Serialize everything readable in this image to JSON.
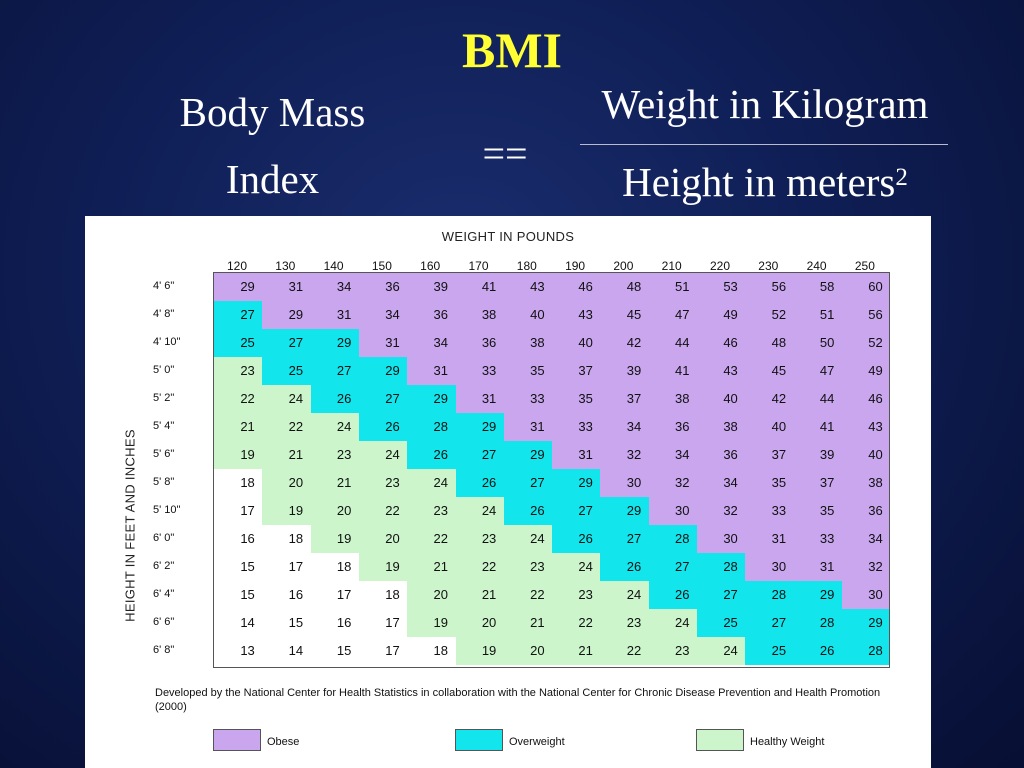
{
  "slide": {
    "title": "BMI",
    "lhs_line1": "Body Mass",
    "lhs_line2": "Index",
    "equals": "==",
    "numerator": "Weight in Kilogram",
    "denominator": "Height in meters",
    "denominator_exponent": "2"
  },
  "colors": {
    "obese": "#c9a6ee",
    "overweight": "#12e6ec",
    "healthy": "#ccf5cc",
    "normal_white": "#ffffff",
    "title_yellow": "#ffff33"
  },
  "chart_data": {
    "type": "heatmap",
    "xlabel": "WEIGHT IN POUNDS",
    "ylabel": "HEIGHT IN FEET AND INCHES",
    "x": [
      "120",
      "130",
      "140",
      "150",
      "160",
      "170",
      "180",
      "190",
      "200",
      "210",
      "220",
      "230",
      "240",
      "250"
    ],
    "y": [
      "4' 6\"",
      "4' 8\"",
      "4' 10\"",
      "5' 0\"",
      "5' 2\"",
      "5' 4\"",
      "5' 6\"",
      "5' 8\"",
      "5' 10\"",
      "6' 0\"",
      "6' 2\"",
      "6' 4\"",
      "6' 6\"",
      "6' 8\""
    ],
    "values": [
      [
        29,
        31,
        34,
        36,
        39,
        41,
        43,
        46,
        48,
        51,
        53,
        56,
        58,
        60
      ],
      [
        27,
        29,
        31,
        34,
        36,
        38,
        40,
        43,
        45,
        47,
        49,
        52,
        51,
        56
      ],
      [
        25,
        27,
        29,
        31,
        34,
        36,
        38,
        40,
        42,
        44,
        46,
        48,
        50,
        52
      ],
      [
        23,
        25,
        27,
        29,
        31,
        33,
        35,
        37,
        39,
        41,
        43,
        45,
        47,
        49
      ],
      [
        22,
        24,
        26,
        27,
        29,
        31,
        33,
        35,
        37,
        38,
        40,
        42,
        44,
        46
      ],
      [
        21,
        22,
        24,
        26,
        28,
        29,
        31,
        33,
        34,
        36,
        38,
        40,
        41,
        43
      ],
      [
        19,
        21,
        23,
        24,
        26,
        27,
        29,
        31,
        32,
        34,
        36,
        37,
        39,
        40
      ],
      [
        18,
        20,
        21,
        23,
        24,
        26,
        27,
        29,
        30,
        32,
        34,
        35,
        37,
        38
      ],
      [
        17,
        19,
        20,
        22,
        23,
        24,
        26,
        27,
        29,
        30,
        32,
        33,
        35,
        36
      ],
      [
        16,
        18,
        19,
        20,
        22,
        23,
        24,
        26,
        27,
        28,
        30,
        31,
        33,
        34
      ],
      [
        15,
        17,
        18,
        19,
        21,
        22,
        23,
        24,
        26,
        27,
        28,
        30,
        31,
        32
      ],
      [
        15,
        16,
        17,
        18,
        20,
        21,
        22,
        23,
        24,
        26,
        27,
        28,
        29,
        30
      ],
      [
        14,
        15,
        16,
        17,
        19,
        20,
        21,
        22,
        23,
        24,
        25,
        27,
        28,
        29
      ],
      [
        13,
        14,
        15,
        17,
        18,
        19,
        20,
        21,
        22,
        23,
        24,
        25,
        26,
        28
      ]
    ],
    "categories_map": [
      "OOOOOOOOOOOOOO",
      "VOOOOOOOOOOOOO",
      "VVVOOOOOOOOOOO",
      "HVVVOOOOOOOOOO",
      "HHVVVOOOOOOOOO",
      "HHHVVVOOOOOOOO",
      "HHHHVVVOOOOOOO",
      "WHHHHVVVOOOOOO",
      "WHHHHHVVVOOOOO",
      "WWHHHHHVVVOOOO",
      "WWWHHHHHVVVOOO",
      "WWWWHHHHHVVVVO",
      "WWWWHHHHHHVVVV",
      "WWWWWHHHHHHVVV"
    ],
    "legend": [
      {
        "key": "O",
        "label": "Obese"
      },
      {
        "key": "V",
        "label": "Overweight"
      },
      {
        "key": "H",
        "label": "Healthy Weight"
      }
    ],
    "note": "Developed by the National Center for Health Statistics in collaboration with the National Center for Chronic Disease Prevention and Health Promotion (2000)"
  }
}
